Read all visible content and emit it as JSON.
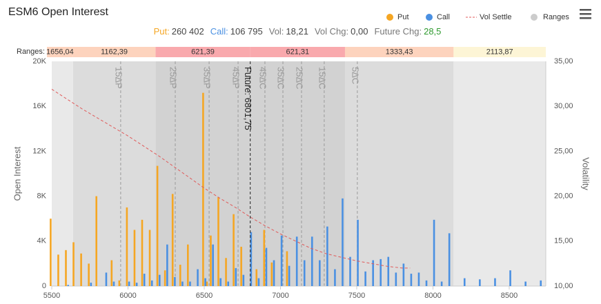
{
  "chart_data": {
    "type": "bar",
    "title": "ESM6 Open Interest",
    "stats": [
      {
        "label": "Put:",
        "value": "260 402",
        "label_color": "#f5a623",
        "value_color": "#444"
      },
      {
        "label": "Call:",
        "value": "106 795",
        "label_color": "#4a90e2",
        "value_color": "#444"
      },
      {
        "label": "Vol:",
        "value": "18,21",
        "label_color": "#777",
        "value_color": "#444"
      },
      {
        "label": "Vol Chg:",
        "value": "0,00",
        "label_color": "#777",
        "value_color": "#444"
      },
      {
        "label": "Future Chg:",
        "value": "28,5",
        "label_color": "#777",
        "value_color": "#2e9a2e"
      }
    ],
    "y_label": "Open Interest",
    "y2_label": "Volatility",
    "xlim": [
      5500,
      8740
    ],
    "xticks": [
      5500,
      6000,
      6500,
      7000,
      7500,
      8000,
      8500
    ],
    "ylim": [
      0,
      20000
    ],
    "yticks": [
      0,
      {
        "value": 4000,
        "label": "4K"
      },
      {
        "value": 8000,
        "label": "8K"
      },
      {
        "value": 12000,
        "label": "12K"
      },
      {
        "value": 16000,
        "label": "16K"
      },
      {
        "value": 20000,
        "label": "20K"
      }
    ],
    "y2lim": [
      10,
      35
    ],
    "y2ticks": [
      {
        "value": 10,
        "label": "10,00"
      },
      {
        "value": 15,
        "label": "15,00"
      },
      {
        "value": 20,
        "label": "20,00"
      },
      {
        "value": 25,
        "label": "25,00"
      },
      {
        "value": 30,
        "label": "30,00"
      },
      {
        "value": 35,
        "label": "35,00"
      }
    ],
    "grid": false,
    "future": {
      "value": 6801.75,
      "label": "Future: 6801,75",
      "color": "#222"
    },
    "deltas": [
      {
        "value": 5952,
        "label": "15ΔP"
      },
      {
        "value": 6310,
        "label": "25ΔP"
      },
      {
        "value": 6532,
        "label": "35ΔP"
      },
      {
        "value": 6722,
        "label": "45ΔP"
      },
      {
        "value": 6898,
        "label": "45ΔC"
      },
      {
        "value": 7016,
        "label": "35ΔC"
      },
      {
        "value": 7138,
        "label": "25ΔC"
      },
      {
        "value": 7287,
        "label": "15ΔC"
      },
      {
        "value": 7504,
        "label": "5ΔC"
      }
    ],
    "ranges": {
      "name": "Ranges",
      "label": "Ranges:",
      "legend_color": "#cccccc",
      "below": [
        621.39,
        1162.39,
        1656.04
      ],
      "below_labels": [
        "621,39",
        "1162,39",
        "1656,04"
      ],
      "above": [
        621.31,
        1333.43,
        2113.87
      ],
      "above_labels": [
        "621,31",
        "1333,43",
        "2113,87"
      ],
      "cell_colors": [
        "#f9a9ad",
        "#fdd3bd",
        "#fdd3bd"
      ],
      "outer_above_color": "#fdf5d6",
      "band_colors": [
        "#d2d2d2",
        "#dcdcdc",
        "#e9e9e9"
      ]
    },
    "series": [
      {
        "name": "Put",
        "color": "#f5a623",
        "x": [
          5500,
          5550,
          5600,
          5650,
          5700,
          5750,
          5800,
          5900,
          5950,
          6000,
          6050,
          6100,
          6150,
          6200,
          6250,
          6300,
          6350,
          6400,
          6500,
          6525,
          6550,
          6600,
          6650,
          6700,
          6750,
          6850,
          6900,
          6950,
          7050
        ],
        "values": [
          6000,
          2800,
          3200,
          3900,
          2900,
          2000,
          8000,
          2300,
          500,
          7000,
          5000,
          5900,
          5000,
          10700,
          1400,
          8200,
          1900,
          3700,
          17200,
          400,
          4500,
          7900,
          2500,
          6400,
          3500,
          1500,
          5000,
          2100,
          3100
        ]
      },
      {
        "name": "Call",
        "color": "#4a90e2",
        "x": [
          5600,
          5750,
          5850,
          5900,
          6000,
          6050,
          6100,
          6150,
          6200,
          6250,
          6300,
          6350,
          6400,
          6450,
          6500,
          6550,
          6600,
          6650,
          6700,
          6750,
          6800,
          6850,
          6900,
          6950,
          7000,
          7050,
          7100,
          7150,
          7200,
          7250,
          7300,
          7350,
          7400,
          7450,
          7500,
          7550,
          7600,
          7650,
          7700,
          7750,
          7800,
          7850,
          7900,
          7950,
          8000,
          8050,
          8100,
          8200,
          8300,
          8400,
          8500,
          8600,
          8700
        ],
        "values": [
          100,
          300,
          1200,
          400,
          400,
          300,
          1100,
          500,
          1000,
          3700,
          800,
          400,
          400,
          1500,
          700,
          3700,
          700,
          400,
          1600,
          1000,
          4800,
          700,
          3400,
          2300,
          4500,
          1800,
          4400,
          2300,
          4400,
          2300,
          5300,
          1500,
          7800,
          2600,
          5900,
          1300,
          2300,
          2400,
          2600,
          1200,
          2000,
          1100,
          1200,
          500,
          5900,
          400,
          4700,
          700,
          600,
          700,
          1400,
          400,
          500
        ]
      },
      {
        "name": "Vol Settle",
        "type": "line",
        "axis": "y2",
        "color": "#e05a5a",
        "x": [
          5500,
          5600,
          5700,
          5800,
          5900,
          6000,
          6100,
          6200,
          6300,
          6400,
          6500,
          6600,
          6700,
          6800,
          6900,
          7000,
          7100,
          7200,
          7300,
          7400,
          7500,
          7600,
          7700,
          7800,
          7850
        ],
        "values": [
          31.9,
          30.8,
          29.7,
          28.7,
          27.7,
          26.7,
          25.6,
          24.5,
          23.3,
          22.1,
          20.9,
          19.8,
          18.8,
          17.7,
          16.7,
          15.8,
          15.0,
          14.2,
          13.6,
          13.2,
          12.8,
          12.5,
          12.2,
          12.0,
          12.0
        ]
      }
    ]
  }
}
